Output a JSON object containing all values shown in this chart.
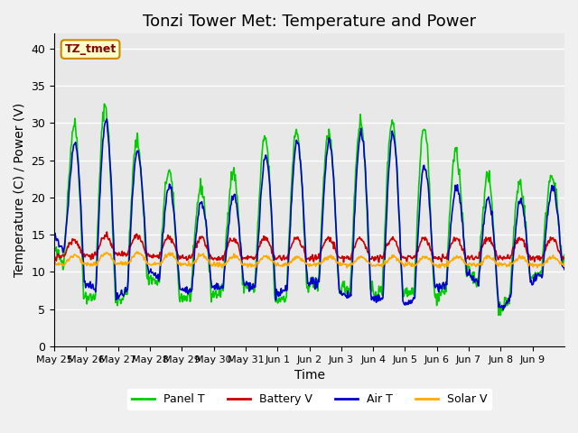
{
  "title": "Tonzi Tower Met: Temperature and Power",
  "xlabel": "Time",
  "ylabel": "Temperature (C) / Power (V)",
  "annotation": "TZ_tmet",
  "ylim": [
    0,
    42
  ],
  "yticks": [
    0,
    5,
    10,
    15,
    20,
    25,
    30,
    35,
    40
  ],
  "xtick_labels": [
    "May 25",
    "May 26",
    "May 27",
    "May 28",
    "May 29",
    "May 30",
    "May 31",
    "Jun 1",
    "Jun 2",
    "Jun 3",
    "Jun 4",
    "Jun 5",
    "Jun 6",
    "Jun 7",
    "Jun 8",
    "Jun 9"
  ],
  "bg_color": "#e8e8e8",
  "grid_color": "#ffffff",
  "line_colors": {
    "panel": "#00cc00",
    "battery": "#cc0000",
    "air": "#0000cc",
    "solar": "#ffaa00"
  },
  "legend_labels": [
    "Panel T",
    "Battery V",
    "Air T",
    "Solar V"
  ],
  "title_fontsize": 13,
  "label_fontsize": 10
}
